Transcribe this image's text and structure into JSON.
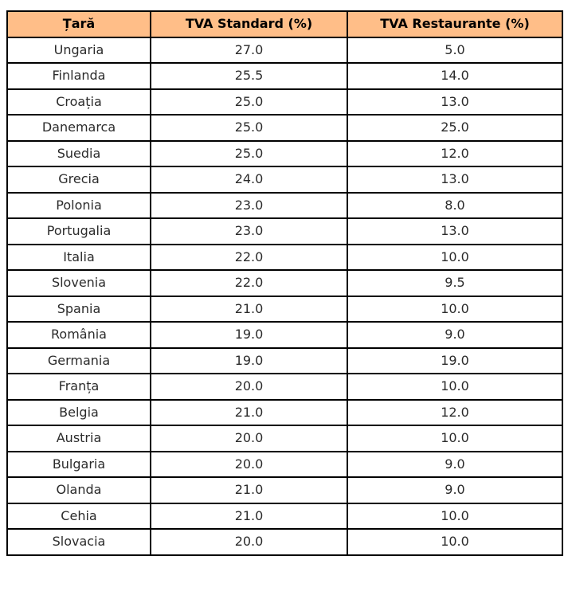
{
  "table": {
    "header": [
      "Țară",
      "TVA Standard (%)",
      "TVA Restaurante (%)"
    ],
    "header_color": "#ffbe88",
    "rows": [
      [
        "Ungaria",
        "27.0",
        "5.0"
      ],
      [
        "Finlanda",
        "25.5",
        "14.0"
      ],
      [
        "Croația",
        "25.0",
        "13.0"
      ],
      [
        "Danemarca",
        "25.0",
        "25.0"
      ],
      [
        "Suedia",
        "25.0",
        "12.0"
      ],
      [
        "Grecia",
        "24.0",
        "13.0"
      ],
      [
        "Polonia",
        "23.0",
        "8.0"
      ],
      [
        "Portugalia",
        "23.0",
        "13.0"
      ],
      [
        "Italia",
        "22.0",
        "10.0"
      ],
      [
        "Slovenia",
        "22.0",
        "9.5"
      ],
      [
        "Spania",
        "21.0",
        "10.0"
      ],
      [
        "România",
        "19.0",
        "9.0"
      ],
      [
        "Germania",
        "19.0",
        "19.0"
      ],
      [
        "Franța",
        "20.0",
        "10.0"
      ],
      [
        "Belgia",
        "21.0",
        "12.0"
      ],
      [
        "Austria",
        "20.0",
        "10.0"
      ],
      [
        "Bulgaria",
        "20.0",
        "9.0"
      ],
      [
        "Olanda",
        "21.0",
        "9.0"
      ],
      [
        "Cehia",
        "21.0",
        "10.0"
      ],
      [
        "Slovacia",
        "20.0",
        "10.0"
      ]
    ]
  }
}
